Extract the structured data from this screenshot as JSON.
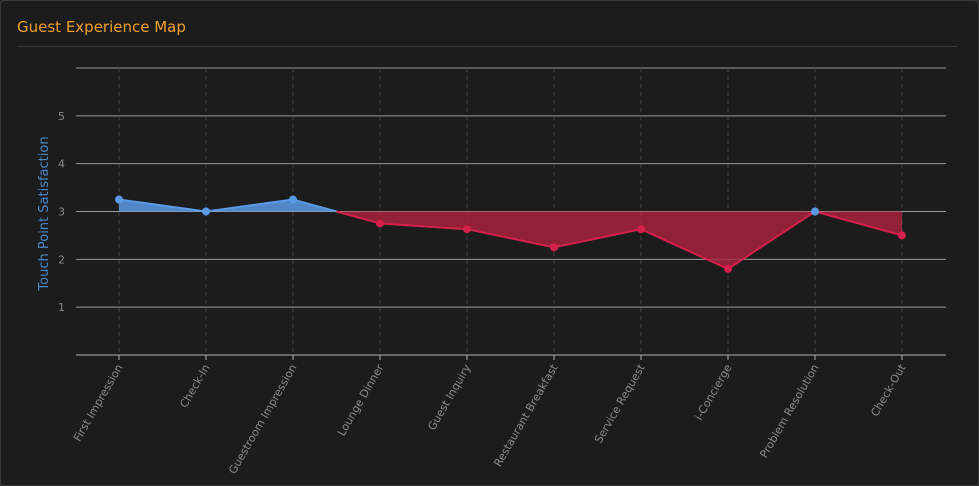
{
  "panel": {
    "title": "Guest Experience Map"
  },
  "colors": {
    "positive": "#5a9ae8",
    "negative": "#d4204a",
    "negative_fill": "#b0223f",
    "positive_fill": "#5a9ae8",
    "grid": "#9a9a9a",
    "title": "#f0a02a"
  },
  "chart_data": {
    "type": "area",
    "title": "",
    "ylabel": "Touch Point Satisfaction",
    "xlabel": "",
    "baseline": 3,
    "ylim": [
      0,
      6
    ],
    "yticks": [
      1,
      2,
      3,
      4,
      5
    ],
    "grid": true,
    "categories": [
      "First Impression",
      "Check-In",
      "Guestroom Impression",
      "Lounge Dinner",
      "Guest Inquiry",
      "Restaurant Breakfast",
      "Service Request",
      "i-Concierge",
      "Problem Resolution",
      "Check-Out"
    ],
    "values": [
      3.25,
      3.0,
      3.25,
      2.75,
      2.63,
      2.25,
      2.63,
      1.8,
      3.0,
      2.5
    ]
  }
}
